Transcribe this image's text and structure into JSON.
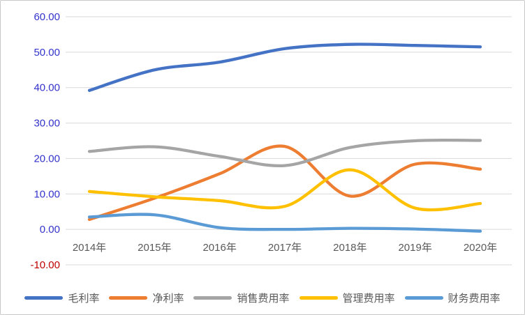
{
  "chart_data": {
    "type": "line",
    "title": "",
    "smooth": true,
    "grid": true,
    "legend_position": "bottom",
    "categories": [
      "2014年",
      "2015年",
      "2016年",
      "2017年",
      "2018年",
      "2019年",
      "2020年"
    ],
    "series": [
      {
        "name": "毛利率",
        "color": "#4472C4",
        "values": [
          39.2,
          45.0,
          47.2,
          51.0,
          52.2,
          51.9,
          51.5
        ]
      },
      {
        "name": "净利率",
        "color": "#ED7D31",
        "values": [
          2.8,
          8.8,
          15.7,
          23.4,
          9.4,
          18.4,
          17.0
        ]
      },
      {
        "name": "销售费用率",
        "color": "#A5A5A5",
        "values": [
          22.0,
          23.3,
          20.6,
          18.0,
          23.1,
          25.0,
          25.1
        ]
      },
      {
        "name": "管理费用率",
        "color": "#FFC000",
        "values": [
          10.7,
          9.2,
          8.1,
          6.5,
          16.8,
          6.0,
          7.3
        ]
      },
      {
        "name": "财务费用率",
        "color": "#5B9BD5",
        "values": [
          3.5,
          4.1,
          0.5,
          0.0,
          0.3,
          0.1,
          -0.5
        ]
      }
    ],
    "ylim": [
      -10,
      60
    ],
    "y_ticks": [
      {
        "label": "60.00",
        "value": 60
      },
      {
        "label": "50.00",
        "value": 50
      },
      {
        "label": "40.00",
        "value": 40
      },
      {
        "label": "30.00",
        "value": 30
      },
      {
        "label": "20.00",
        "value": 20
      },
      {
        "label": "10.00",
        "value": 10
      },
      {
        "label": "0.00",
        "value": 0
      },
      {
        "label": "-10.00",
        "value": -10
      }
    ]
  },
  "colors": {
    "background": "#FFFFFF",
    "grid": "#D9D9D9",
    "tick_positive": "#3333CC",
    "tick_negative": "#C00000",
    "category_label": "#595959",
    "legend_label": "#595959",
    "border": "#C9C9C9"
  }
}
